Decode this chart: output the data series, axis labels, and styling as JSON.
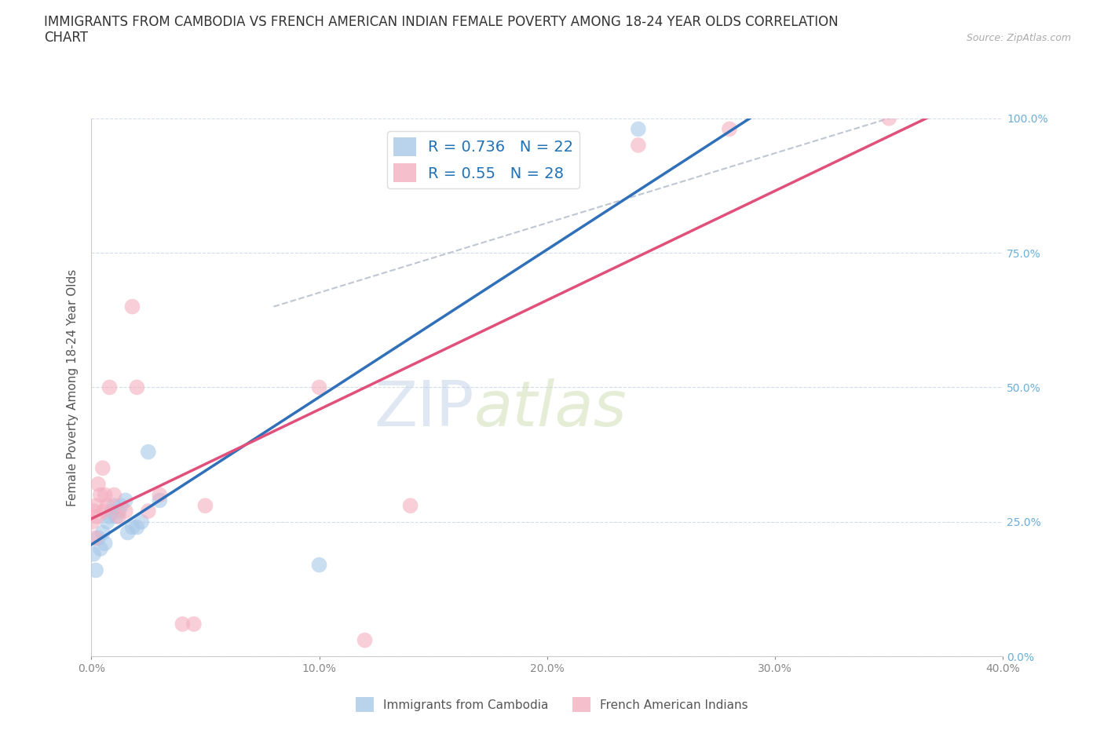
{
  "title": "IMMIGRANTS FROM CAMBODIA VS FRENCH AMERICAN INDIAN FEMALE POVERTY AMONG 18-24 YEAR OLDS CORRELATION\nCHART",
  "source": "Source: ZipAtlas.com",
  "xlabel_bottom": "Immigrants from Cambodia",
  "xlabel_bottom2": "French American Indians",
  "ylabel": "Female Poverty Among 18-24 Year Olds",
  "xlim": [
    0.0,
    40.0
  ],
  "ylim": [
    0.0,
    100.0
  ],
  "blue_R": 0.736,
  "blue_N": 22,
  "pink_R": 0.55,
  "pink_N": 28,
  "blue_color": "#a8c8e8",
  "pink_color": "#f4afc0",
  "blue_line_color": "#3070b8",
  "pink_line_color": "#e0507a",
  "dashed_line_color": "#b0b8c8",
  "watermark_zip": "ZIP",
  "watermark_atlas": "atlas",
  "blue_scatter_x": [
    0.1,
    0.2,
    0.3,
    0.4,
    0.5,
    0.6,
    0.7,
    0.8,
    0.9,
    1.0,
    1.1,
    1.2,
    1.3,
    1.5,
    1.6,
    1.8,
    2.0,
    2.2,
    2.5,
    3.0,
    10.0,
    24.0
  ],
  "blue_scatter_y": [
    19.0,
    16.0,
    22.0,
    20.0,
    23.0,
    21.0,
    25.0,
    26.0,
    27.0,
    28.0,
    26.0,
    27.0,
    28.0,
    29.0,
    23.0,
    24.0,
    24.0,
    25.0,
    38.0,
    29.0,
    17.0,
    98.0
  ],
  "pink_scatter_x": [
    0.05,
    0.1,
    0.15,
    0.2,
    0.25,
    0.3,
    0.4,
    0.5,
    0.55,
    0.6,
    0.7,
    0.8,
    1.0,
    1.2,
    1.5,
    1.8,
    2.0,
    2.5,
    3.0,
    4.0,
    4.5,
    5.0,
    10.0,
    12.0,
    14.0,
    24.0,
    28.0,
    35.0
  ],
  "pink_scatter_y": [
    25.0,
    27.0,
    22.0,
    28.0,
    26.0,
    32.0,
    30.0,
    35.0,
    27.0,
    30.0,
    28.0,
    50.0,
    30.0,
    26.0,
    27.0,
    65.0,
    50.0,
    27.0,
    30.0,
    6.0,
    6.0,
    28.0,
    50.0,
    3.0,
    28.0,
    95.0,
    98.0,
    100.0
  ],
  "title_fontsize": 12,
  "axis_label_fontsize": 11,
  "tick_fontsize": 10,
  "legend_fontsize": 14,
  "source_fontsize": 9,
  "background_color": "#ffffff",
  "grid_color": "#d0d8e8"
}
